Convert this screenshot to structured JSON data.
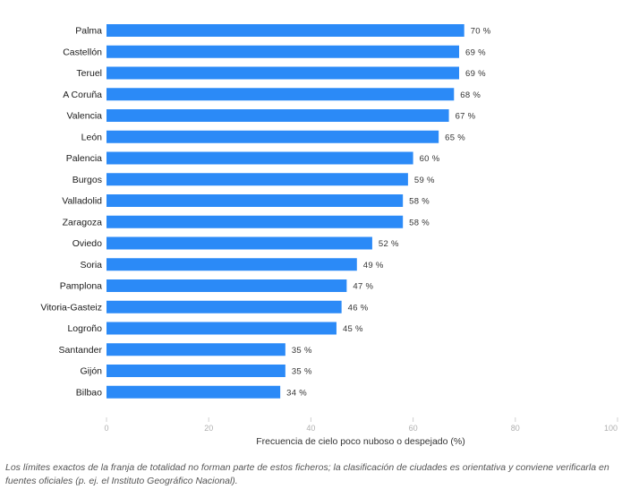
{
  "chart_data": {
    "type": "bar",
    "orientation": "horizontal",
    "categories": [
      "Palma",
      "Castellón",
      "Teruel",
      "A Coruña",
      "Valencia",
      "León",
      "Palencia",
      "Burgos",
      "Valladolid",
      "Zaragoza",
      "Oviedo",
      "Soria",
      "Pamplona",
      "Vitoria-Gasteiz",
      "Logroño",
      "Santander",
      "Gijón",
      "Bilbao"
    ],
    "values": [
      70,
      69,
      69,
      68,
      67,
      65,
      60,
      59,
      58,
      58,
      52,
      49,
      47,
      46,
      45,
      35,
      35,
      34
    ],
    "value_labels": [
      "70 %",
      "69 %",
      "69 %",
      "68 %",
      "67 %",
      "65 %",
      "60 %",
      "59 %",
      "58 %",
      "58 %",
      "52 %",
      "49 %",
      "47 %",
      "46 %",
      "45 %",
      "35 %",
      "35 %",
      "34 %"
    ],
    "xlabel": "Frecuencia de cielo poco nuboso o despejado (%)",
    "ylabel": "",
    "xlim": [
      0,
      100
    ],
    "xticks": [
      "0",
      "20",
      "40",
      "60",
      "80",
      "100"
    ],
    "grid": false,
    "bar_color": "#2b8af7"
  },
  "caption": "Los límites exactos de la franja de totalidad no forman parte de estos ficheros; la clasificación de ciudades es orientativa y conviene verificarla en fuentes oficiales (p. ej. el Instituto Geográfico Nacional)."
}
